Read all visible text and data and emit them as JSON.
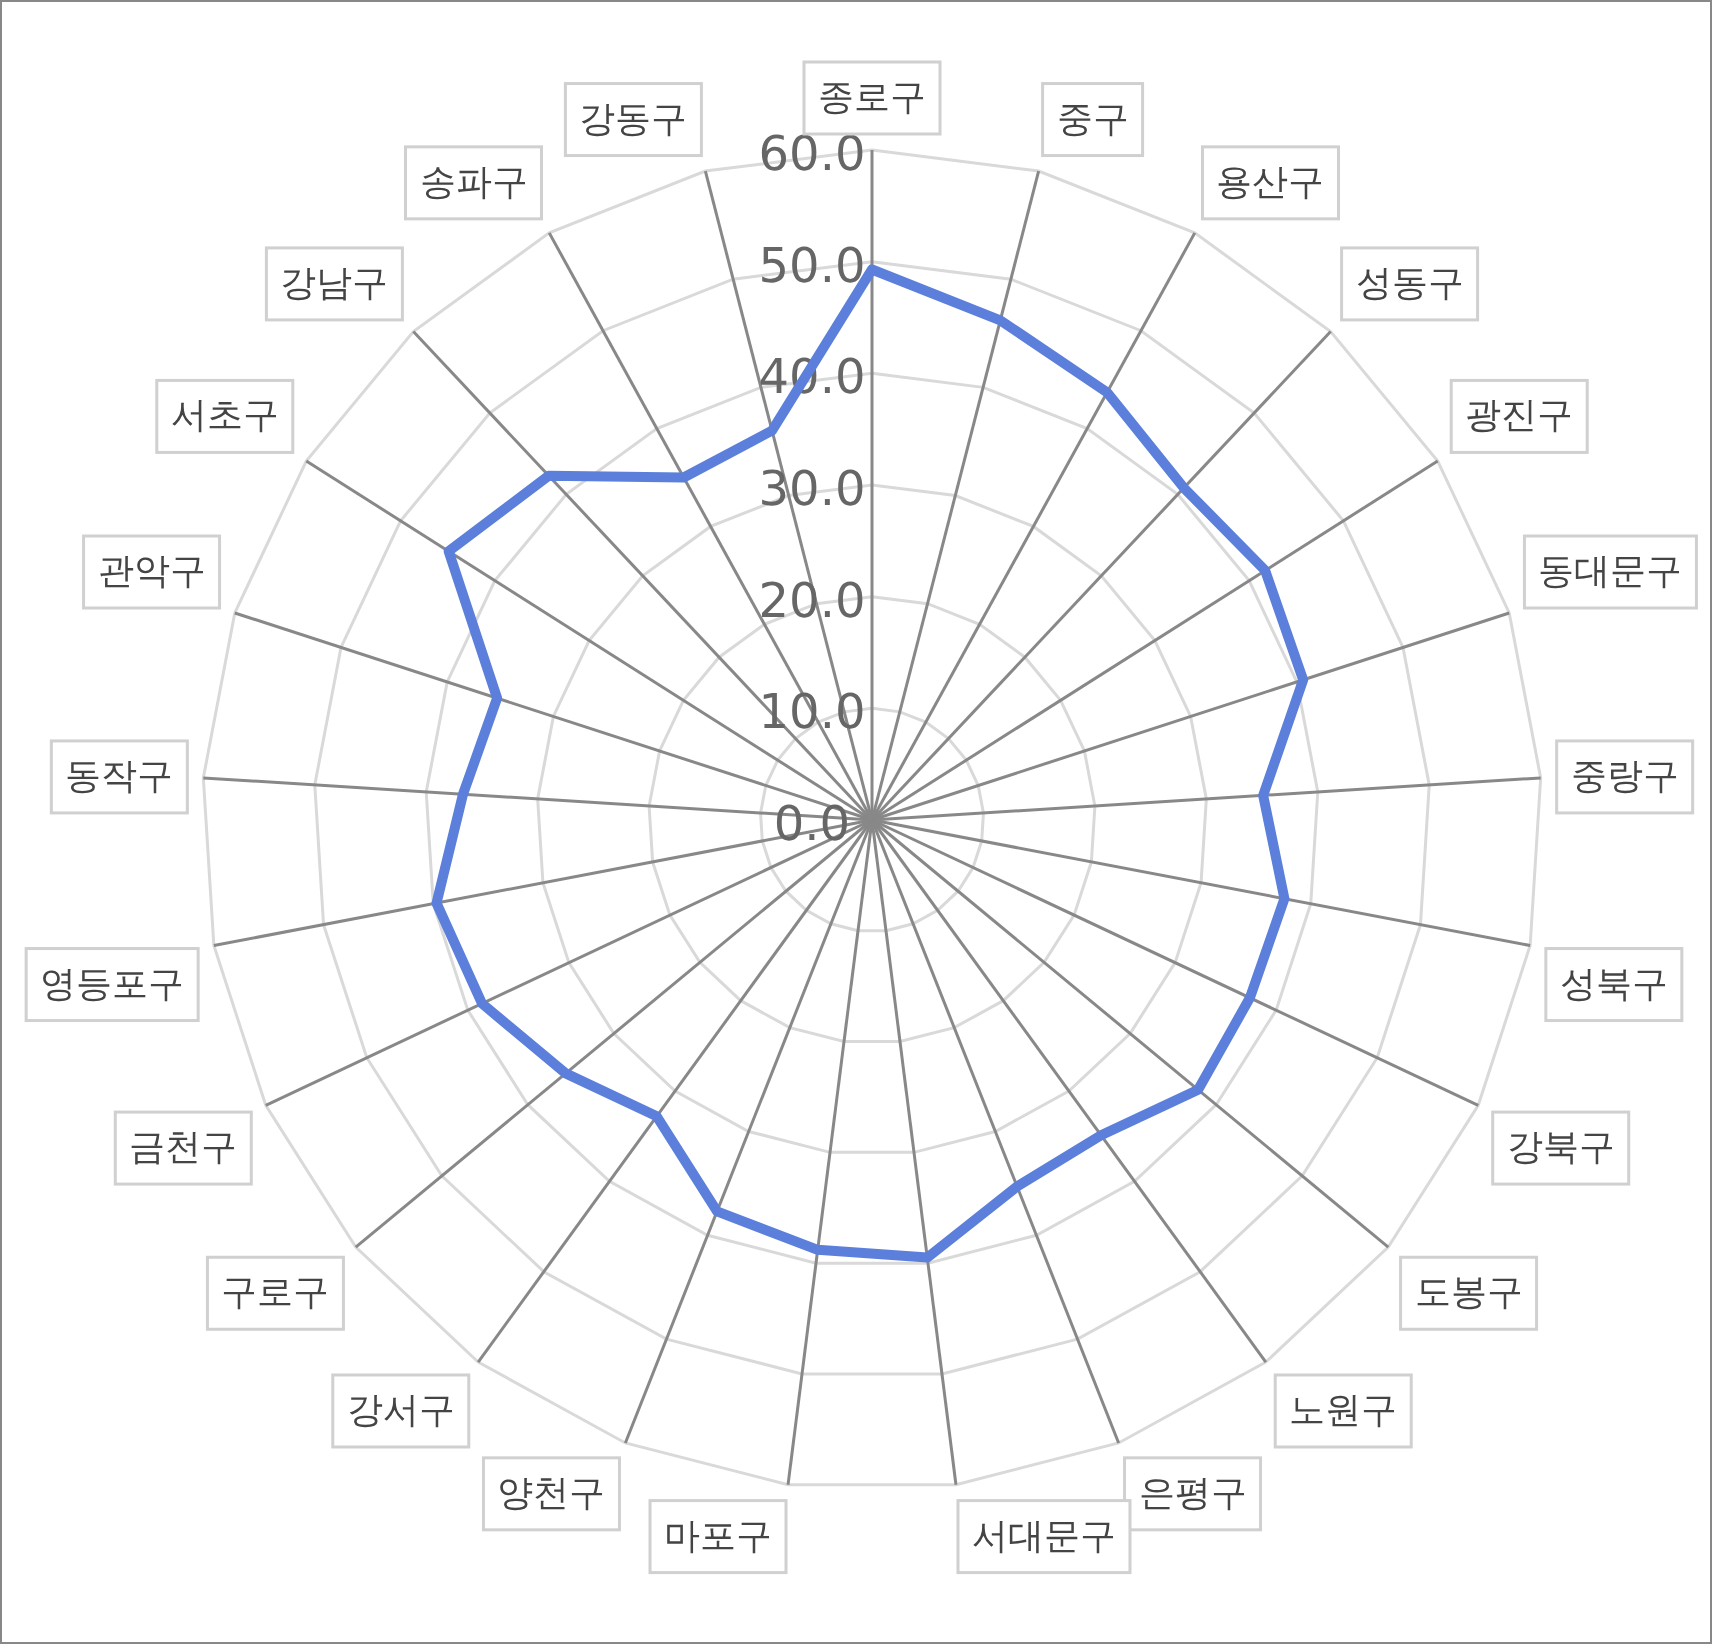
{
  "chart_data": {
    "type": "radar",
    "categories": [
      "종로구",
      "중구",
      "용산구",
      "성동구",
      "광진구",
      "동대문구",
      "중랑구",
      "성북구",
      "강북구",
      "도봉구",
      "노원구",
      "은평구",
      "서대문구",
      "마포구",
      "양천구",
      "강서구",
      "구로구",
      "금천구",
      "영등포구",
      "동작구",
      "관악구",
      "서초구",
      "강남구",
      "송파구",
      "강동구"
    ],
    "series": [
      {
        "color": "#5b7fdb",
        "values": [
          49.3,
          46.2,
          43.7,
          40.8,
          41.7,
          40.6,
          35.1,
          37.6,
          37.4,
          37.9,
          34.9,
          35.3,
          39.5,
          38.8,
          37.7,
          32.8,
          35.6,
          38.6,
          39.7,
          36.7,
          35.3,
          44.9,
          42.3,
          35.0,
          36.0
        ]
      }
    ],
    "ylim": [
      0,
      60
    ],
    "yticks": [
      {
        "value": 0,
        "label": "0.0"
      },
      {
        "value": 10,
        "label": "10.0"
      },
      {
        "value": 20,
        "label": "20.0"
      },
      {
        "value": 30,
        "label": "30.0"
      },
      {
        "value": 40,
        "label": "40.0"
      },
      {
        "value": 50,
        "label": "50.0"
      },
      {
        "value": 60,
        "label": "60.0"
      }
    ],
    "grid": true
  }
}
